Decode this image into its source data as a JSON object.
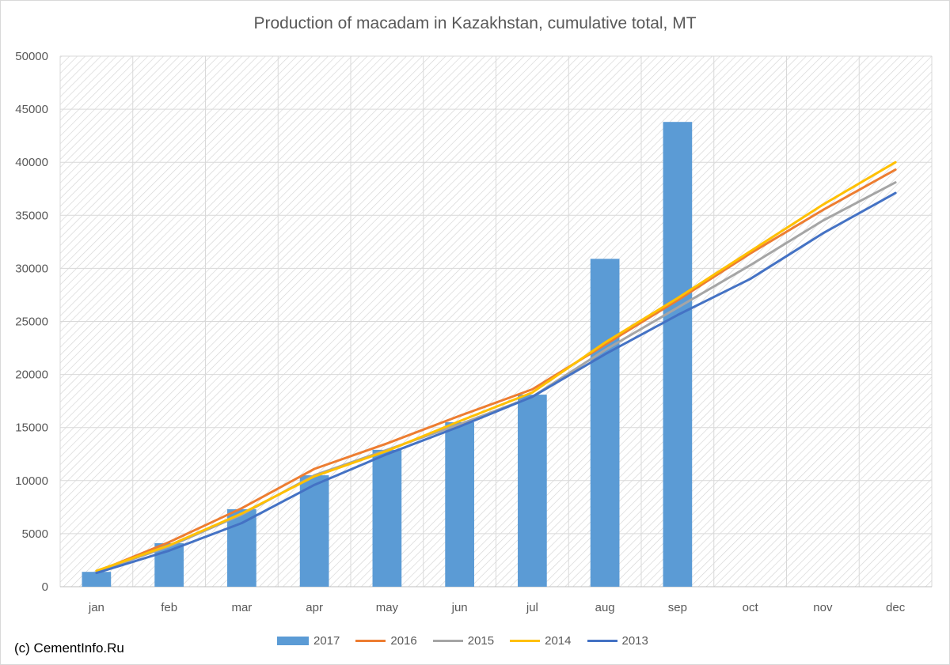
{
  "chart_data": {
    "type": "bar",
    "title": "Production of macadam in Kazakhstan, cumulative total, MT",
    "categories": [
      "jan",
      "feb",
      "mar",
      "apr",
      "may",
      "jun",
      "jul",
      "aug",
      "sep",
      "oct",
      "nov",
      "dec"
    ],
    "ylim": [
      0,
      50000
    ],
    "yticks": [
      0,
      5000,
      10000,
      15000,
      20000,
      25000,
      30000,
      35000,
      40000,
      45000,
      50000
    ],
    "grid": true,
    "legend_position": "bottom",
    "bar_series": {
      "name": "2017",
      "color": "#5b9bd5",
      "values": [
        1400,
        4100,
        7300,
        10500,
        12900,
        15500,
        18100,
        30900,
        43800,
        null,
        null,
        null
      ]
    },
    "line_series": [
      {
        "name": "2016",
        "color": "#ed7d31",
        "values": [
          1400,
          4200,
          7400,
          11100,
          13500,
          16100,
          18600,
          22800,
          27000,
          31400,
          35500,
          39300
        ]
      },
      {
        "name": "2015",
        "color": "#a5a5a5",
        "values": [
          1400,
          3800,
          6800,
          10500,
          12900,
          15300,
          17900,
          22300,
          26300,
          30300,
          34500,
          38100
        ]
      },
      {
        "name": "2014",
        "color": "#ffc000",
        "values": [
          1500,
          3900,
          6900,
          10400,
          12800,
          15600,
          18300,
          23000,
          27200,
          31600,
          36000,
          40000
        ]
      },
      {
        "name": "2013",
        "color": "#4472c4",
        "values": [
          1300,
          3400,
          6000,
          9600,
          12500,
          15100,
          17900,
          21900,
          25600,
          29000,
          33300,
          37100
        ]
      }
    ]
  },
  "footer": {
    "copyright": "(c) CementInfo.Ru"
  }
}
